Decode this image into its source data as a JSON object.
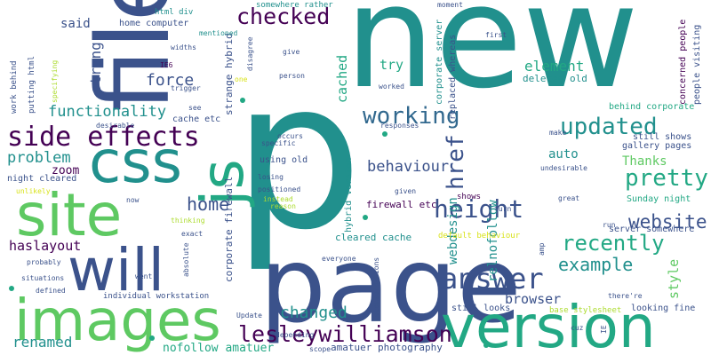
{
  "palette": {
    "dark_purple": "#440154",
    "indigo": "#3b528b",
    "slate_blue": "#31688e",
    "teal": "#21908d",
    "sea_green": "#22a884",
    "green": "#5ec962",
    "lime": "#addc30",
    "yellow": "#d8e219"
  },
  "words": {
    "new": "new",
    "p": "p",
    "file": "file",
    "page": "page",
    "version": "version",
    "images": "images",
    "css": "css",
    "site": "site",
    "will": "will",
    "js": "js",
    "side_effects": "side effects",
    "answer": "answer",
    "height": "height",
    "lesleywilliamson": "lesleywilliamson",
    "updated": "updated",
    "pretty": "pretty",
    "working": "working",
    "checked": "checked",
    "recently": "recently",
    "website": "website",
    "example": "example",
    "functionality": "functionality",
    "problem": "problem",
    "home": "home",
    "changed": "changed",
    "behaviour": "behaviour",
    "href": "href",
    "force": "force",
    "element": "element",
    "try": "try",
    "said": "said",
    "strong": "strong",
    "renamed": "renamed",
    "haslayout": "haslayout",
    "zoom": "zoom",
    "browser": "browser",
    "style": "style",
    "auto": "auto",
    "thanks": "Thanks",
    "cached": "cached",
    "webdesign": "webdesign",
    "relnofollow": "relnofollow",
    "nofollow_amatuer": "nofollow amatuer",
    "amatuer_photography": "amatuer photography",
    "firewall_etc": "firewall etc",
    "cleared_cache": "cleared cache",
    "corporate_firewall": "corporate firewall",
    "hybrid_version": "hybrid version",
    "strange_hybrid": "strange hybrid",
    "corporate_server": "corporate server",
    "replaced_whereas": "replaced whereas",
    "deleted_old": "deleted old",
    "behind_corporate": "behind corporate",
    "still_shows": "still shows",
    "gallery_pages": "gallery pages",
    "concerned_people": "concerned people",
    "people_visiting": "people visiting",
    "sunday_night": "Sunday night",
    "server_somewhere": "server somewhere",
    "default_behaviour": "default behaviour",
    "still_looks": "still looks",
    "looking_fine": "looking fine",
    "base_stylesheet": "base stylesheet",
    "individual_workstation": "individual workstation",
    "night_cleared": "night cleared",
    "cache_etc": "cache etc",
    "using_old": "using old",
    "home_computer": "home computer",
    "html_div": "html div",
    "somewhere_rather": "somewhere rather",
    "work_behind": "work behind",
    "putting_html": "putting html",
    "shows": "shows",
    "specific": "specific",
    "occurs": "occurs",
    "update": "Update",
    "depending": "depending",
    "everyone": "everyone",
    "recommendations": "recommendations",
    "scope": "scope",
    "went": "went",
    "defined": "defined",
    "situations": "situations",
    "probably": "probably",
    "absolute": "absolute",
    "exact": "exact",
    "thinking": "thinking",
    "now": "now",
    "unlikely": "unlikely",
    "desirable": "desirable",
    "specifying": "specifying",
    "widths": "widths",
    "ie6": "IE6",
    "trigger": "trigger",
    "see": "see",
    "give": "give",
    "person": "person",
    "disagree": "disagree",
    "mentioned": "mentioned",
    "moment": "moment",
    "first": "first",
    "worked": "worked",
    "responses": "responses",
    "make": "make",
    "undesirable": "undesirable",
    "great": "great",
    "given": "given",
    "turn": "turn",
    "run": "run",
    "amp": "amp",
    "theres": "there're",
    "cuz": "cuz",
    "ie": "IE",
    "losing": "losing",
    "positioned": "positioned",
    "instead": "instead",
    "reason": "reason",
    "one": "one"
  }
}
